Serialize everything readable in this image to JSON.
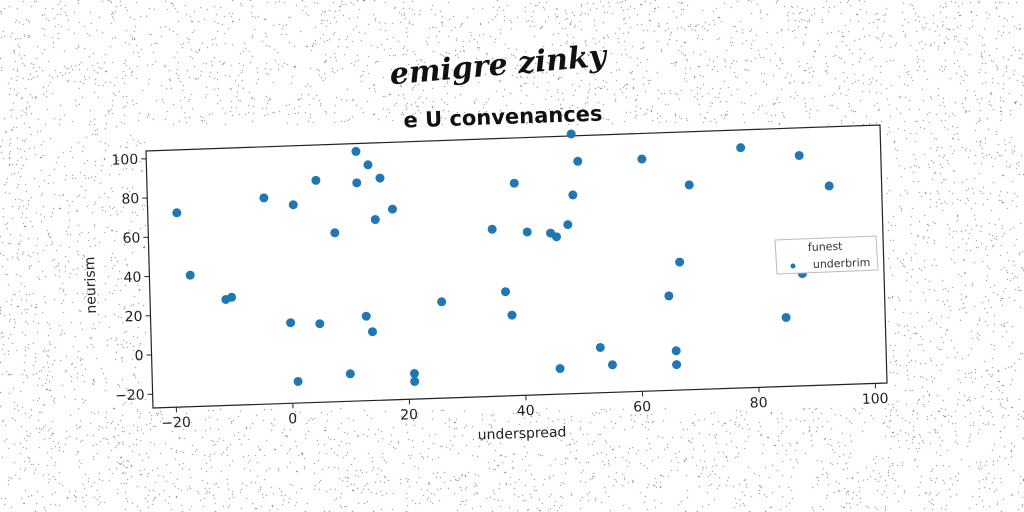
{
  "chart_data": {
    "type": "scatter",
    "suptitle": "emigre zinky",
    "title": "e U convenances",
    "xlabel": "underspread",
    "ylabel": "neurism",
    "xlim": [
      -24,
      102
    ],
    "ylim": [
      -27,
      104
    ],
    "xticks": [
      "−20",
      "0",
      "20",
      "40",
      "60",
      "80",
      "100"
    ],
    "yticks": [
      "−20",
      "0",
      "20",
      "40",
      "60",
      "80",
      "100"
    ],
    "grid": false,
    "legend_position": "right",
    "legend": [
      {
        "label": "funest",
        "marker": "none"
      },
      {
        "label": "underbrim",
        "marker": "dot"
      }
    ],
    "series": [
      {
        "name": "underbrim",
        "color": "#1f77b4",
        "points": [
          [
            -19,
            72
          ],
          [
            -17,
            40
          ],
          [
            -11,
            27
          ],
          [
            -10,
            28
          ],
          [
            -4,
            78
          ],
          [
            0,
            14
          ],
          [
            1,
            -16
          ],
          [
            1,
            74
          ],
          [
            5,
            86
          ],
          [
            5,
            13
          ],
          [
            8,
            59
          ],
          [
            10,
            -13
          ],
          [
            12,
            100
          ],
          [
            12,
            84
          ],
          [
            13,
            16
          ],
          [
            14,
            8
          ],
          [
            14,
            93
          ],
          [
            15,
            65
          ],
          [
            16,
            86
          ],
          [
            18,
            70
          ],
          [
            21,
            -14
          ],
          [
            21,
            -18
          ],
          [
            26,
            22
          ],
          [
            35,
            58
          ],
          [
            37,
            26
          ],
          [
            38,
            14
          ],
          [
            39,
            81
          ],
          [
            41,
            56
          ],
          [
            45,
            55
          ],
          [
            46,
            53
          ],
          [
            46,
            -14
          ],
          [
            48,
            59
          ],
          [
            49,
            105
          ],
          [
            49,
            74
          ],
          [
            50,
            91
          ],
          [
            53,
            -4
          ],
          [
            55,
            -13
          ],
          [
            61,
            91
          ],
          [
            65,
            21
          ],
          [
            66,
            -7
          ],
          [
            66,
            -14
          ],
          [
            67,
            38
          ],
          [
            69,
            77
          ],
          [
            78,
            95
          ],
          [
            85,
            8
          ],
          [
            88,
            90
          ],
          [
            88,
            30
          ],
          [
            93,
            74
          ]
        ]
      }
    ]
  }
}
